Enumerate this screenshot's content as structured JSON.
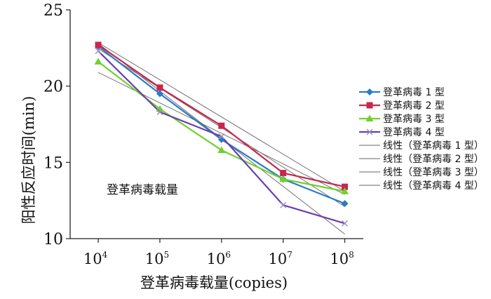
{
  "chart_data": {
    "type": "line",
    "title": "",
    "xlabel": "登革病毒载量(copies)",
    "ylabel": "阳性反应时间(min)",
    "annotation": "登革病毒载量",
    "x_scale": "log",
    "x": [
      10000,
      100000,
      1000000,
      10000000,
      100000000
    ],
    "x_tick_labels": [
      {
        "base": "10",
        "exp": "4"
      },
      {
        "base": "10",
        "exp": "5"
      },
      {
        "base": "10",
        "exp": "6"
      },
      {
        "base": "10",
        "exp": "7"
      },
      {
        "base": "10",
        "exp": "8"
      }
    ],
    "xlim": [
      3500,
      200000000
    ],
    "ylim": [
      10,
      25
    ],
    "y_ticks": [
      10,
      15,
      20,
      25
    ],
    "grid": false,
    "legend_position": "right",
    "series": [
      {
        "name": "登革病毒 1 型",
        "color": "#2a7bc4",
        "marker": "diamond",
        "values": [
          22.6,
          19.5,
          16.5,
          13.9,
          12.3
        ]
      },
      {
        "name": "登革病毒 2 型",
        "color": "#c8264f",
        "marker": "square",
        "values": [
          22.7,
          19.9,
          17.4,
          14.3,
          13.4
        ]
      },
      {
        "name": "登革病毒 3 型",
        "color": "#6fd12c",
        "marker": "triangle",
        "values": [
          21.6,
          18.5,
          15.8,
          13.9,
          13.1
        ]
      },
      {
        "name": "登革病毒 4 型",
        "color": "#6a3fb0",
        "marker": "x",
        "values": [
          22.3,
          18.3,
          16.7,
          12.2,
          11.0
        ]
      }
    ],
    "trendlines": [
      {
        "name": "线性 (登革病毒 1 型)",
        "color": "#666666",
        "start": 22.45,
        "end": 12.1
      },
      {
        "name": "线性 (登革病毒 2 型)",
        "color": "#666666",
        "start": 22.85,
        "end": 13.1
      },
      {
        "name": "线性 (登革病毒 3 型)",
        "color": "#666666",
        "start": 20.9,
        "end": 12.9
      },
      {
        "name": "线性 (登革病毒 4 型)",
        "color": "#666666",
        "start": 22.8,
        "end": 10.3
      }
    ],
    "legend_labels": [
      "登革病毒 1 型",
      "登革病毒 2 型",
      "登革病毒 3 型",
      "登革病毒 4 型",
      "线性（登革病毒 1 型）",
      "线性（登革病毒 2 型）",
      "线性（登革病毒 3 型）",
      "线性（登革病毒 4 型）"
    ]
  }
}
